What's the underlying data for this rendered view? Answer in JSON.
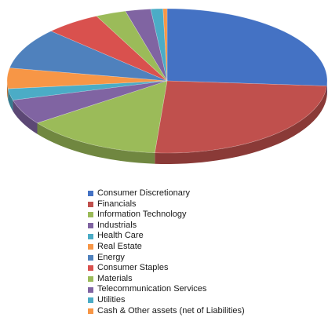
{
  "chart_data": {
    "type": "pie",
    "three_d": true,
    "legend_position": "bottom",
    "slices": [
      {
        "label": "Consumer Discretionary",
        "value": 25.5,
        "color": "#4472C4"
      },
      {
        "label": "Financials",
        "value": 24.5,
        "color": "#C0504D"
      },
      {
        "label": "Information Technology",
        "value": 13.5,
        "color": "#9BBB59"
      },
      {
        "label": "Industrials",
        "value": 5.5,
        "color": "#8064A2"
      },
      {
        "label": "Health Care",
        "value": 2.5,
        "color": "#4BACC6"
      },
      {
        "label": "Real Estate",
        "value": 4.5,
        "color": "#F79646"
      },
      {
        "label": "Energy",
        "value": 9.0,
        "color": "#4F81BD"
      },
      {
        "label": "Consumer Staples",
        "value": 5.5,
        "color": "#D9514E"
      },
      {
        "label": "Materials",
        "value": 3.0,
        "color": "#9BBB59"
      },
      {
        "label": "Telecommunication Services",
        "value": 2.5,
        "color": "#8064A2"
      },
      {
        "label": "Utilities",
        "value": 1.2,
        "color": "#4BACC6"
      },
      {
        "label": "Cash & Other assets (net of Liabilities)",
        "value": 0.4,
        "color": "#F79646"
      }
    ]
  }
}
